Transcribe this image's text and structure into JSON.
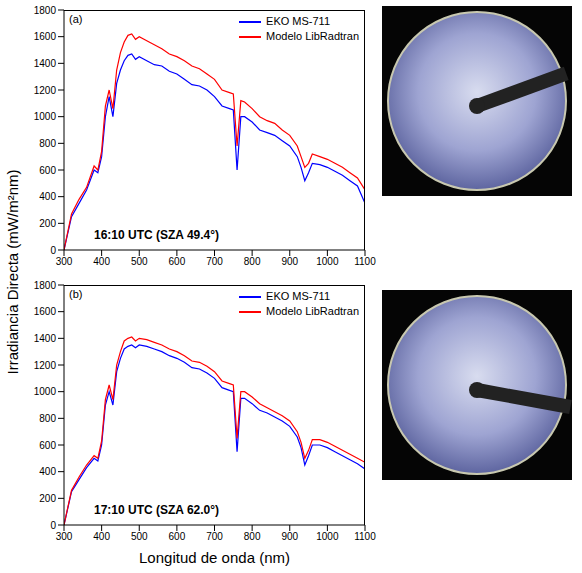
{
  "shared": {
    "x_label": "Longitud de onda (nm)",
    "y_label": "Irradiancia Directa (mW/m²nm)"
  },
  "chart_data": [
    {
      "type": "line",
      "label": "(a)",
      "annotation": "16:10 UTC (SZA 49.4°)",
      "legend": "upper right",
      "grid": false,
      "xlim": [
        300,
        1100
      ],
      "xticks": [
        300,
        400,
        500,
        600,
        700,
        800,
        900,
        1000,
        1100
      ],
      "ylim": [
        0,
        1800
      ],
      "yticks": [
        0,
        200,
        400,
        600,
        800,
        1000,
        1200,
        1400,
        1600,
        1800
      ],
      "x": [
        300,
        320,
        340,
        360,
        380,
        390,
        400,
        410,
        420,
        430,
        440,
        450,
        460,
        470,
        480,
        490,
        500,
        520,
        540,
        560,
        580,
        600,
        620,
        640,
        660,
        680,
        700,
        720,
        740,
        750,
        760,
        770,
        780,
        800,
        820,
        840,
        860,
        880,
        900,
        920,
        930,
        940,
        950,
        960,
        980,
        1000,
        1020,
        1040,
        1060,
        1080,
        1100
      ],
      "series": [
        {
          "name": "EKO MS-711",
          "color": "#0000ff",
          "values": [
            0,
            250,
            350,
            450,
            600,
            580,
            700,
            1000,
            1150,
            1000,
            1250,
            1350,
            1420,
            1460,
            1470,
            1430,
            1450,
            1420,
            1390,
            1380,
            1340,
            1320,
            1280,
            1240,
            1230,
            1200,
            1150,
            1080,
            1060,
            1050,
            600,
            1000,
            1000,
            960,
            900,
            880,
            860,
            820,
            780,
            700,
            620,
            520,
            580,
            650,
            640,
            620,
            590,
            560,
            520,
            480,
            350
          ]
        },
        {
          "name": "Modelo LibRadtran",
          "color": "#ff0000",
          "values": [
            0,
            270,
            380,
            470,
            630,
            600,
            740,
            1080,
            1200,
            1060,
            1350,
            1480,
            1560,
            1610,
            1620,
            1580,
            1600,
            1570,
            1540,
            1510,
            1470,
            1450,
            1420,
            1380,
            1360,
            1320,
            1280,
            1200,
            1180,
            1170,
            780,
            1120,
            1110,
            1060,
            1000,
            970,
            950,
            900,
            860,
            780,
            700,
            620,
            650,
            720,
            700,
            680,
            650,
            620,
            580,
            540,
            450
          ]
        }
      ]
    },
    {
      "type": "line",
      "label": "(b)",
      "annotation": "17:10 UTC (SZA 62.0°)",
      "legend": "upper right",
      "grid": false,
      "xlim": [
        300,
        1100
      ],
      "xticks": [
        300,
        400,
        500,
        600,
        700,
        800,
        900,
        1000,
        1100
      ],
      "ylim": [
        0,
        1800
      ],
      "yticks": [
        0,
        200,
        400,
        600,
        800,
        1000,
        1200,
        1400,
        1600,
        1800
      ],
      "x": [
        300,
        320,
        340,
        360,
        380,
        390,
        400,
        410,
        420,
        430,
        440,
        450,
        460,
        470,
        480,
        490,
        500,
        520,
        540,
        560,
        580,
        600,
        620,
        640,
        660,
        680,
        700,
        720,
        740,
        750,
        760,
        770,
        780,
        800,
        820,
        840,
        860,
        880,
        900,
        920,
        930,
        940,
        950,
        960,
        980,
        1000,
        1020,
        1040,
        1060,
        1080,
        1100
      ],
      "series": [
        {
          "name": "EKO MS-711",
          "color": "#0000ff",
          "values": [
            0,
            250,
            340,
            430,
            500,
            480,
            600,
            900,
            1000,
            900,
            1150,
            1250,
            1320,
            1340,
            1350,
            1330,
            1350,
            1340,
            1320,
            1300,
            1270,
            1250,
            1220,
            1180,
            1170,
            1140,
            1100,
            1030,
            1010,
            1000,
            550,
            950,
            950,
            910,
            860,
            840,
            810,
            780,
            740,
            660,
            580,
            450,
            520,
            600,
            600,
            580,
            550,
            520,
            490,
            460,
            420
          ]
        },
        {
          "name": "Modelo LibRadtran",
          "color": "#ff0000",
          "values": [
            0,
            260,
            360,
            450,
            520,
            500,
            630,
            940,
            1050,
            940,
            1200,
            1300,
            1380,
            1400,
            1410,
            1380,
            1400,
            1390,
            1370,
            1350,
            1320,
            1300,
            1270,
            1230,
            1220,
            1190,
            1150,
            1080,
            1060,
            1050,
            650,
            1000,
            1000,
            960,
            910,
            880,
            850,
            820,
            780,
            700,
            620,
            500,
            560,
            640,
            640,
            620,
            590,
            560,
            530,
            500,
            470
          ]
        }
      ]
    }
  ]
}
